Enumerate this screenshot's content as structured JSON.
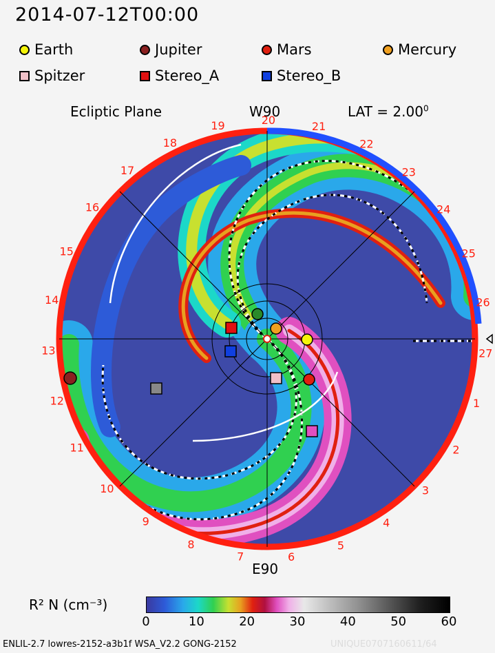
{
  "title": "2014-07-12T00:00",
  "legend": [
    {
      "label": "Earth",
      "shape": "circle",
      "color": "#f5f50a"
    },
    {
      "label": "Jupiter",
      "shape": "circle",
      "color": "#8b2020"
    },
    {
      "label": "Mars",
      "shape": "circle",
      "color": "#e02010"
    },
    {
      "label": "Mercury",
      "shape": "circle",
      "color": "#f0a020"
    },
    {
      "label": "Spitzer",
      "shape": "square",
      "color": "#f0c0c8"
    },
    {
      "label": "Stereo_A",
      "shape": "square",
      "color": "#e01010"
    },
    {
      "label": "Stereo_B",
      "shape": "square",
      "color": "#1040e0"
    }
  ],
  "plot": {
    "plane_label": "Ecliptic Plane",
    "top_label": "W90",
    "bottom_label": "E90",
    "lat_label": "LAT = 2.00",
    "lat_unit": "0",
    "rim_numbers": [
      "19",
      "20",
      "21",
      "22",
      "23",
      "24",
      "25",
      "26",
      "27",
      "1",
      "2",
      "3",
      "4",
      "5",
      "6",
      "7",
      "8",
      "9",
      "10",
      "11",
      "12",
      "13",
      "14",
      "15",
      "16",
      "17",
      "18"
    ]
  },
  "colorbar": {
    "label": "R² N (cm⁻³)",
    "ticks": [
      "0",
      "10",
      "20",
      "30",
      "40",
      "50",
      "60"
    ]
  },
  "footer": "ENLIL-2.7 lowres-2152-a3b1f WSA_V2.2 GONG-2152",
  "footer_id": "UNIQUE0707160611/64"
}
